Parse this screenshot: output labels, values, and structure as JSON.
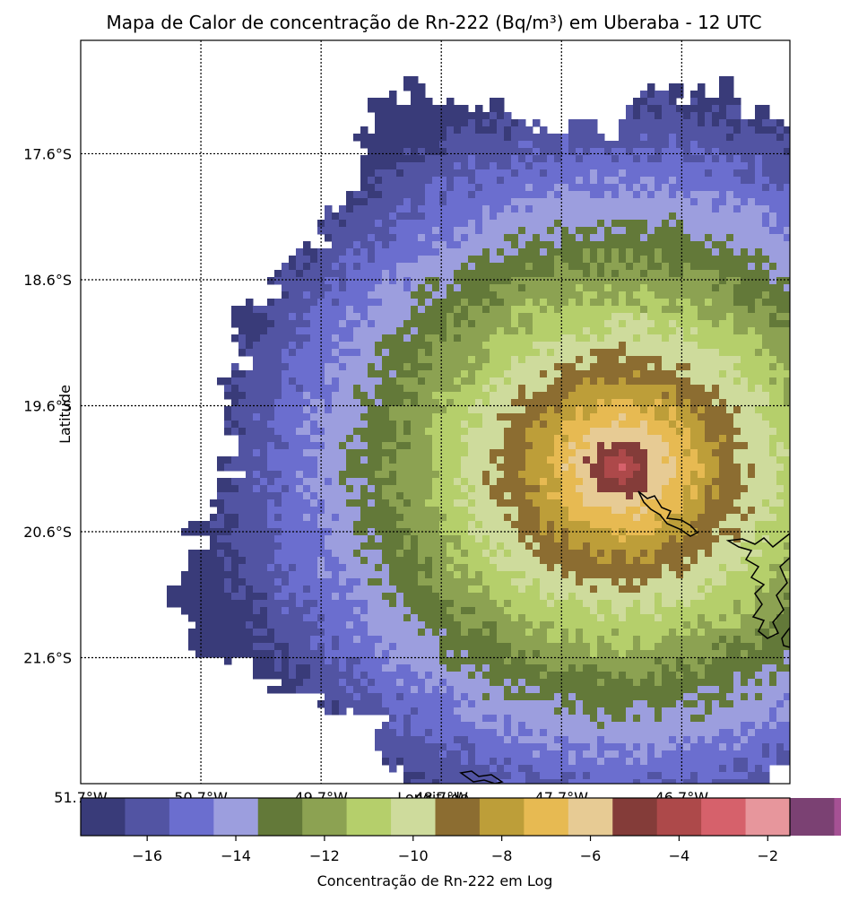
{
  "chart_data": {
    "type": "heatmap",
    "title": "Mapa de Calor de concentração de Rn-222 (Bq/m³) em Uberaba - 12 UTC",
    "xlabel": "Longitude",
    "ylabel": "Latitude",
    "x_ticks": [
      "51.7°W",
      "50.7°W",
      "49.7°W",
      "48.7°W",
      "47.7°W",
      "46.7°W"
    ],
    "y_ticks": [
      "17.6°S",
      "18.6°S",
      "19.6°S",
      "20.6°S",
      "21.6°S"
    ],
    "xlim_deg": [
      -51.7,
      -45.8
    ],
    "ylim_deg": [
      -22.6,
      -16.7
    ],
    "grid": true,
    "source_center": {
      "lon": -47.2,
      "lat": -20.1,
      "peak_log": -2.5
    },
    "colorbar": {
      "label": "Concentração de Rn-222 em Log",
      "min": -17.5,
      "max": -1.5,
      "step": 1,
      "ticks": [
        -16,
        -14,
        -12,
        -10,
        -8,
        -6,
        -4,
        -2
      ],
      "tick_labels": [
        "−16",
        "−14",
        "−12",
        "−10",
        "−8",
        "−6",
        "−4",
        "−2"
      ],
      "colors": [
        "#393b79",
        "#5254a3",
        "#6b6ecf",
        "#9c9ede",
        "#637939",
        "#8ca252",
        "#b5cf6b",
        "#cedb9c",
        "#8c6d31",
        "#bd9e39",
        "#e7ba52",
        "#e7cb94",
        "#843c39",
        "#ad494a",
        "#d6616b",
        "#e7969c",
        "#7b4173",
        "#a55194",
        "#ce6dbd",
        "#de9ed6"
      ]
    }
  }
}
